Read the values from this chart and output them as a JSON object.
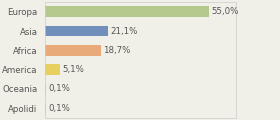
{
  "categories": [
    "Europa",
    "Asia",
    "Africa",
    "America",
    "Oceania",
    "Apolidi"
  ],
  "values": [
    55.0,
    21.1,
    18.7,
    5.1,
    0.1,
    0.1
  ],
  "labels": [
    "55,0%",
    "21,1%",
    "18,7%",
    "5,1%",
    "0,1%",
    "0,1%"
  ],
  "bar_colors": [
    "#b5c98e",
    "#7090bb",
    "#e8aa78",
    "#e8d060",
    "#cccccc",
    "#cccccc"
  ],
  "background_color": "#f0f0e8",
  "text_color": "#555555",
  "bar_text_color": "#555555",
  "fontsize": 6.2,
  "bar_height": 0.55,
  "xlim": [
    0,
    78
  ],
  "figsize": [
    2.8,
    1.2
  ],
  "dpi": 100,
  "border_color": "#cccccc"
}
